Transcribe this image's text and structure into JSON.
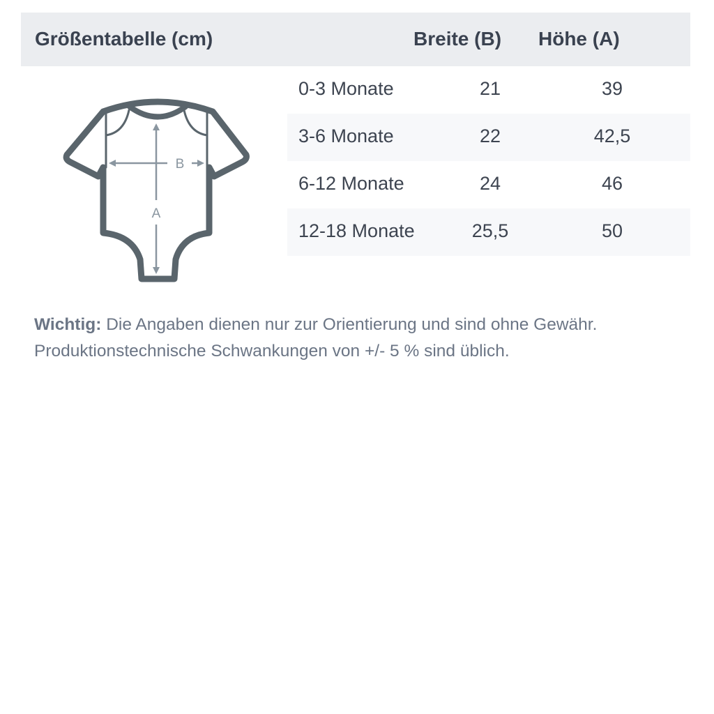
{
  "header": {
    "title": "Größentabelle (cm)",
    "col_width": "Breite (B)",
    "col_height": "Höhe (A)"
  },
  "rows": [
    {
      "size": "0-3 Monate",
      "width": "21",
      "height": "39"
    },
    {
      "size": "3-6 Monate",
      "width": "22",
      "height": "42,5"
    },
    {
      "size": "6-12 Monate",
      "width": "24",
      "height": "46"
    },
    {
      "size": "12-18 Monate",
      "width": "25,5",
      "height": "50"
    }
  ],
  "figure": {
    "label_b": "B",
    "label_a": "A",
    "outline_color": "#5a656c",
    "arrow_color": "#8a96a0"
  },
  "note": {
    "label": "Wichtig:",
    "line1": " Die Angaben dienen nur zur Orientierung und sind ohne Gewähr.",
    "line2": "Produktionstechnische Schwankungen von +/- 5 % sind üblich."
  }
}
